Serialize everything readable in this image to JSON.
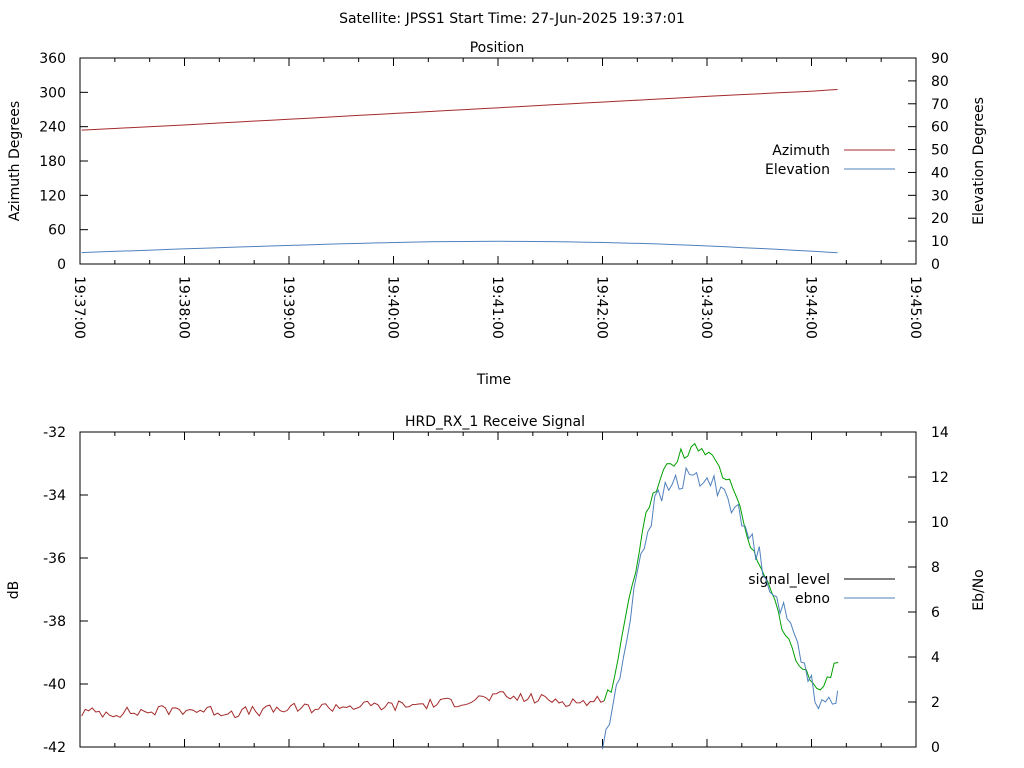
{
  "suptitle": "Satellite: JPSS1    Start Time: 27-Jun-2025 19:37:01",
  "chart_data": [
    {
      "type": "line",
      "title": "Position",
      "xlabel": "Time",
      "ylabel": "Azimuth Degrees",
      "y2label": "Elevation Degrees",
      "x_ticks": [
        "19:37:00",
        "19:38:00",
        "19:39:00",
        "19:40:00",
        "19:41:00",
        "19:42:00",
        "19:43:00",
        "19:44:00",
        "19:45:00"
      ],
      "xlim": [
        "19:37:00",
        "19:45:00"
      ],
      "ylim": [
        0,
        360
      ],
      "y_ticks": [
        0,
        60,
        120,
        180,
        240,
        300,
        360
      ],
      "y2lim": [
        0,
        90
      ],
      "y2_ticks": [
        0,
        10,
        20,
        30,
        40,
        50,
        60,
        70,
        80,
        90
      ],
      "legend_position": "right",
      "series": [
        {
          "name": "Azimuth",
          "axis": "left",
          "color": "#a52a2a",
          "x": [
            "19:37:01",
            "19:38:00",
            "19:39:00",
            "19:40:00",
            "19:41:00",
            "19:42:00",
            "19:43:00",
            "19:44:00",
            "19:44:15"
          ],
          "values": [
            234,
            243,
            253,
            263,
            273,
            283,
            293,
            302,
            305
          ]
        },
        {
          "name": "Elevation",
          "axis": "right",
          "color": "#4f81bd",
          "x": [
            "19:37:01",
            "19:37:30",
            "19:38:00",
            "19:38:30",
            "19:39:00",
            "19:39:30",
            "19:40:00",
            "19:40:30",
            "19:41:00",
            "19:41:30",
            "19:42:00",
            "19:42:30",
            "19:43:00",
            "19:43:30",
            "19:44:00",
            "19:44:15"
          ],
          "values": [
            5.0,
            5.8,
            6.6,
            7.4,
            8.1,
            8.8,
            9.4,
            9.8,
            9.9,
            9.8,
            9.4,
            8.8,
            7.9,
            6.8,
            5.6,
            4.9
          ]
        }
      ]
    },
    {
      "type": "line",
      "title": "HRD_RX_1 Receive Signal",
      "xlabel": "",
      "ylabel": "dB",
      "y2label": "Eb/No",
      "x_ticks": [],
      "xlim": [
        "19:37:00",
        "19:45:00"
      ],
      "ylim": [
        -42,
        -32
      ],
      "y_ticks": [
        -42,
        -40,
        -38,
        -36,
        -34,
        -32
      ],
      "y2lim": [
        0,
        14
      ],
      "y2_ticks": [
        0,
        2,
        4,
        6,
        8,
        10,
        12,
        14
      ],
      "legend_position": "right",
      "series": [
        {
          "name": "signal_level",
          "axis": "left",
          "color": "#000000",
          "legend_color": "#000000",
          "segment_colors": [
            {
              "until": "19:42:00",
              "color": "#a52a2a"
            },
            {
              "until": "19:44:20",
              "color": "#00a000"
            }
          ],
          "x": [
            "19:37:01",
            "19:37:30",
            "19:38:00",
            "19:38:30",
            "19:39:00",
            "19:39:30",
            "19:40:00",
            "19:40:30",
            "19:41:00",
            "19:41:30",
            "19:41:55",
            "19:42:05",
            "19:42:15",
            "19:42:25",
            "19:42:35",
            "19:42:45",
            "19:42:55",
            "19:43:05",
            "19:43:15",
            "19:43:25",
            "19:43:35",
            "19:43:45",
            "19:43:55",
            "19:44:05",
            "19:44:15"
          ],
          "values": [
            -40.9,
            -40.9,
            -40.8,
            -40.9,
            -40.8,
            -40.7,
            -40.7,
            -40.6,
            -40.4,
            -40.5,
            -40.6,
            -40.2,
            -37.5,
            -34.5,
            -33.3,
            -32.7,
            -32.5,
            -33.0,
            -33.8,
            -35.6,
            -36.7,
            -38.5,
            -39.6,
            -40.2,
            -39.3
          ]
        },
        {
          "name": "ebno",
          "axis": "right",
          "color": "#4f81bd",
          "x": [
            "19:42:00",
            "19:42:10",
            "19:42:20",
            "19:42:30",
            "19:42:40",
            "19:42:50",
            "19:43:00",
            "19:43:10",
            "19:43:20",
            "19:43:30",
            "19:43:40",
            "19:43:50",
            "19:44:00",
            "19:44:05",
            "19:44:10",
            "19:44:15"
          ],
          "values": [
            0.0,
            3.0,
            8.0,
            10.8,
            11.7,
            12.0,
            11.8,
            11.5,
            10.0,
            8.5,
            6.6,
            5.0,
            3.0,
            1.6,
            1.8,
            2.5
          ]
        }
      ]
    }
  ]
}
